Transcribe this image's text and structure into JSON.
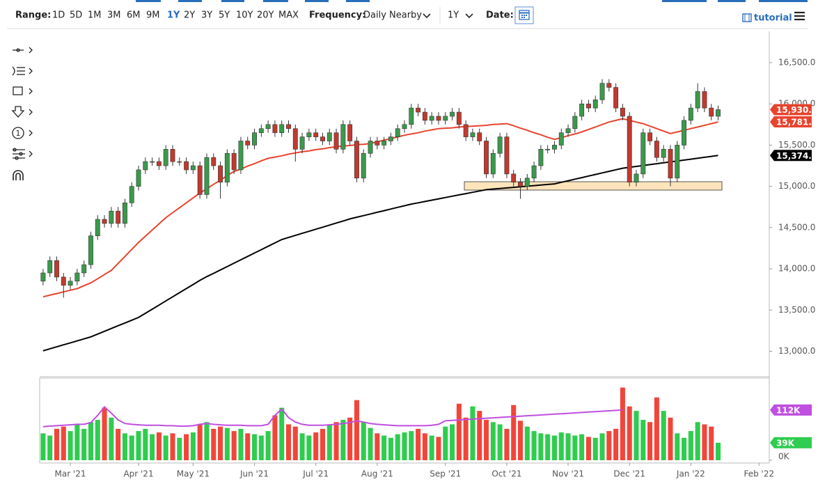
{
  "toolbar": {
    "range_label": "Range:",
    "ranges": [
      "1D",
      "5D",
      "1M",
      "3M",
      "6M",
      "9M",
      "1Y",
      "2Y",
      "3Y",
      "5Y",
      "10Y",
      "20Y",
      "MAX"
    ],
    "active_range_index": 6,
    "frequency_label": "Frequency:",
    "frequency": "Daily Nearby",
    "period": "1Y",
    "date_label": "Date:",
    "tutorial": "tutorial"
  },
  "tools": {
    "number_icon": "1"
  },
  "chart_data": {
    "type": "candlestick",
    "categories": [
      null,
      null,
      null,
      null,
      "Mar '21",
      null,
      null,
      null,
      null,
      null,
      null,
      null,
      null,
      null,
      "Apr '21",
      null,
      null,
      null,
      null,
      null,
      null,
      null,
      "May '21",
      null,
      null,
      null,
      null,
      null,
      null,
      null,
      null,
      "Jun '21",
      null,
      null,
      null,
      null,
      null,
      null,
      null,
      null,
      "Jul '21",
      null,
      null,
      null,
      null,
      null,
      null,
      null,
      null,
      "Aug '21",
      null,
      null,
      null,
      null,
      null,
      null,
      null,
      null,
      null,
      "Sep '21",
      null,
      null,
      null,
      null,
      null,
      null,
      null,
      null,
      "Oct '21",
      null,
      null,
      null,
      null,
      null,
      null,
      null,
      null,
      "Nov '21",
      null,
      null,
      null,
      null,
      null,
      null,
      null,
      null,
      "Dec '21",
      null,
      null,
      null,
      null,
      null,
      null,
      null,
      null,
      "Jan '22",
      null,
      null,
      null,
      null,
      null,
      null,
      null,
      null,
      null,
      "Feb '22",
      null
    ],
    "open": [
      13850,
      13950,
      14100,
      13900,
      13800,
      13850,
      13950,
      14050,
      14400,
      14600,
      14550,
      14700,
      14550,
      14800,
      15000,
      15200,
      15300,
      15300,
      15250,
      15450,
      15300,
      15300,
      15200,
      15250,
      14900,
      15350,
      15250,
      15050,
      15400,
      15200,
      15550,
      15500,
      15650,
      15700,
      15750,
      15650,
      15750,
      15700,
      15450,
      15600,
      15650,
      15600,
      15550,
      15650,
      15450,
      15750,
      15550,
      15100,
      15400,
      15550,
      15500,
      15550,
      15600,
      15700,
      15750,
      15950,
      15900,
      15800,
      15850,
      15800,
      15850,
      15900,
      15750,
      15600,
      15650,
      15550,
      15150,
      15400,
      15600,
      15150,
      15050,
      15000,
      15100,
      15250,
      15450,
      15450,
      15500,
      15650,
      15700,
      15850,
      16000,
      15950,
      16050,
      16250,
      16200,
      15950,
      15850,
      15050,
      15150,
      15650,
      15550,
      15350,
      15450,
      15100,
      15500,
      15800,
      15950,
      16150,
      15950,
      15850,
      null,
      null,
      null,
      null,
      null,
      null,
      null
    ],
    "high": [
      14000,
      14150,
      14150,
      13950,
      13900,
      14000,
      14100,
      14450,
      14650,
      14650,
      14750,
      14750,
      14850,
      15050,
      15250,
      15350,
      15350,
      15350,
      15500,
      15500,
      15350,
      15350,
      15300,
      15300,
      15400,
      15400,
      15300,
      15450,
      15450,
      15600,
      15600,
      15700,
      15750,
      15800,
      15800,
      15800,
      15800,
      15750,
      15650,
      15700,
      15700,
      15650,
      15700,
      15700,
      15800,
      15800,
      15600,
      15450,
      15600,
      15600,
      15600,
      15650,
      15750,
      15800,
      16000,
      16000,
      15950,
      15900,
      15900,
      15900,
      15950,
      15950,
      15800,
      15700,
      15700,
      15600,
      15450,
      15650,
      15650,
      15200,
      15100,
      15150,
      15300,
      15500,
      15500,
      15550,
      15700,
      15750,
      15900,
      16050,
      16050,
      16100,
      16300,
      16300,
      16250,
      16000,
      15900,
      15200,
      15700,
      15700,
      15600,
      15500,
      15500,
      15550,
      15850,
      16000,
      16250,
      16200,
      16000,
      15980,
      null,
      null,
      null,
      null,
      null,
      null,
      null
    ],
    "low": [
      13800,
      13900,
      13850,
      13650,
      13750,
      13800,
      13900,
      14000,
      14350,
      14500,
      14500,
      14500,
      14500,
      14750,
      14950,
      15150,
      15250,
      15200,
      15200,
      15250,
      15250,
      15150,
      15150,
      14850,
      14850,
      15200,
      14850,
      15000,
      15150,
      15150,
      15450,
      15450,
      15600,
      15650,
      15600,
      15600,
      15650,
      15300,
      15400,
      15550,
      15550,
      15500,
      15500,
      15400,
      15400,
      15500,
      15050,
      15050,
      15350,
      15450,
      15450,
      15500,
      15550,
      15650,
      15700,
      15850,
      15750,
      15750,
      15750,
      15750,
      15800,
      15700,
      15550,
      15550,
      15500,
      15100,
      15100,
      15350,
      15100,
      15000,
      14850,
      14950,
      15050,
      15200,
      15400,
      15400,
      15450,
      15600,
      15650,
      15800,
      15900,
      15900,
      16000,
      16150,
      15900,
      15800,
      15000,
      15000,
      15100,
      15500,
      15300,
      15300,
      15000,
      15050,
      15450,
      15750,
      15900,
      15900,
      15800,
      15800,
      null,
      null,
      null,
      null,
      null,
      null,
      null
    ],
    "close": [
      13950,
      14100,
      13900,
      13800,
      13850,
      13950,
      14050,
      14400,
      14600,
      14550,
      14700,
      14550,
      14800,
      15000,
      15200,
      15300,
      15300,
      15250,
      15450,
      15300,
      15300,
      15200,
      15250,
      14900,
      15350,
      15250,
      15050,
      15400,
      15200,
      15550,
      15500,
      15650,
      15700,
      15750,
      15650,
      15750,
      15700,
      15450,
      15600,
      15650,
      15600,
      15550,
      15650,
      15450,
      15750,
      15550,
      15100,
      15400,
      15550,
      15500,
      15550,
      15600,
      15700,
      15750,
      15950,
      15900,
      15800,
      15850,
      15800,
      15850,
      15900,
      15750,
      15600,
      15650,
      15550,
      15150,
      15400,
      15600,
      15150,
      15050,
      15000,
      15100,
      15250,
      15450,
      15450,
      15500,
      15650,
      15700,
      15850,
      16000,
      15950,
      16050,
      16250,
      16200,
      15950,
      15850,
      15050,
      15150,
      15650,
      15550,
      15350,
      15450,
      15100,
      15500,
      15800,
      15950,
      16150,
      15950,
      15850,
      15930,
      null,
      null,
      null,
      null,
      null,
      null,
      null
    ],
    "last_label": "15,930.0",
    "last_color": "#e8432e",
    "up_color": "#3a9a4b",
    "down_color": "#c2392e",
    "overlays": [
      {
        "color": "#e8432e",
        "last_label": "15,781.8",
        "values": [
          13660,
          13680,
          13700,
          13720,
          13740,
          13760,
          13795,
          13830,
          13880,
          13930,
          13980,
          14065,
          14150,
          14235,
          14320,
          14395,
          14470,
          14545,
          14620,
          14680,
          14740,
          14800,
          14860,
          14920,
          14970,
          15025,
          15075,
          15130,
          15180,
          15210,
          15245,
          15275,
          15310,
          15340,
          15355,
          15370,
          15390,
          15405,
          15420,
          15430,
          15445,
          15455,
          15470,
          15480,
          15490,
          15495,
          15505,
          15510,
          15520,
          15540,
          15560,
          15580,
          15600,
          15620,
          15635,
          15650,
          15670,
          15685,
          15700,
          15705,
          15710,
          15720,
          15725,
          15730,
          15735,
          15740,
          15750,
          15755,
          15760,
          15735,
          15705,
          15680,
          15650,
          15625,
          15595,
          15570,
          15590,
          15615,
          15635,
          15660,
          15690,
          15720,
          15750,
          15780,
          15800,
          15820,
          15800,
          15780,
          15760,
          15730,
          15700,
          15670,
          15640,
          15660,
          15680,
          15700,
          15720,
          15740,
          15760,
          15781.8,
          null,
          null,
          null,
          null,
          null,
          null,
          null
        ]
      },
      {
        "color": "#000000",
        "last_label": "15,374.5",
        "values": [
          13006,
          13030,
          13054,
          13078,
          13102,
          13126,
          13150,
          13175,
          13208,
          13242,
          13276,
          13310,
          13343,
          13376,
          13410,
          13460,
          13510,
          13560,
          13610,
          13660,
          13710,
          13760,
          13810,
          13860,
          13905,
          13945,
          13986,
          14027,
          14068,
          14109,
          14150,
          14191,
          14232,
          14273,
          14314,
          14355,
          14380,
          14405,
          14430,
          14455,
          14480,
          14505,
          14530,
          14555,
          14580,
          14605,
          14625,
          14645,
          14665,
          14685,
          14705,
          14725,
          14745,
          14765,
          14785,
          14800,
          14816,
          14832,
          14848,
          14864,
          14880,
          14896,
          14912,
          14928,
          14944,
          14960,
          14967,
          14974,
          14981,
          14988,
          14995,
          15002,
          15009,
          15016,
          15023,
          15030,
          15049,
          15068,
          15087,
          15106,
          15125,
          15144,
          15163,
          15182,
          15201,
          15220,
          15231,
          15242,
          15253,
          15264,
          15275,
          15286,
          15297,
          15308,
          15319,
          15330,
          15341,
          15352,
          15363,
          15374.5,
          null,
          null,
          null,
          null,
          null,
          null,
          null
        ]
      }
    ],
    "ylim": [
      12700,
      16880
    ],
    "yticks": [
      {
        "value": 13000,
        "label": "13,000.0"
      },
      {
        "value": 13500,
        "label": "13,500.0"
      },
      {
        "value": 14000,
        "label": "14,000.0"
      },
      {
        "value": 14500,
        "label": "14,500.0"
      },
      {
        "value": 15000,
        "label": "15,000.0"
      },
      {
        "value": 15500,
        "label": "15,500.0"
      },
      {
        "value": 16000,
        "label": "16,000.0"
      },
      {
        "value": 16500,
        "label": "16,500.0"
      }
    ],
    "grid": false,
    "volume": {
      "up_color": "#2fcc4f",
      "down_color": "#f2453a",
      "last_label": "39K",
      "values": [
        60000,
        55000,
        70000,
        75000,
        65000,
        80000,
        70000,
        85000,
        90000,
        117000,
        95000,
        70000,
        60000,
        55000,
        65000,
        70000,
        58000,
        62000,
        55000,
        60000,
        50000,
        58000,
        62000,
        80000,
        85000,
        70000,
        75000,
        72000,
        65000,
        70000,
        60000,
        58000,
        55000,
        65000,
        100000,
        117000,
        80000,
        75000,
        60000,
        55000,
        62000,
        70000,
        80000,
        85000,
        90000,
        95000,
        134000,
        85000,
        72000,
        60000,
        55000,
        50000,
        58000,
        62000,
        65000,
        70000,
        60000,
        55000,
        52000,
        75000,
        80000,
        126000,
        95000,
        120000,
        110000,
        90000,
        85000,
        80000,
        70000,
        123000,
        88000,
        75000,
        65000,
        60000,
        58000,
        55000,
        62000,
        60000,
        55000,
        58000,
        52000,
        50000,
        60000,
        65000,
        70000,
        162000,
        120000,
        110000,
        90000,
        85000,
        140000,
        110000,
        95000,
        60000,
        50000,
        65000,
        85000,
        80000,
        75000,
        39000,
        null,
        null,
        null,
        null,
        null,
        null,
        null
      ],
      "average": {
        "color": "#c04ee0",
        "last_label": "112K",
        "values": [
          75000,
          76000,
          77000,
          78000,
          79000,
          80000,
          80000,
          84000,
          100000,
          119000,
          105000,
          90000,
          82000,
          80000,
          79000,
          78000,
          78000,
          78000,
          77000,
          77000,
          76000,
          76000,
          77000,
          80000,
          82000,
          80000,
          79000,
          78000,
          78000,
          78000,
          77000,
          77000,
          77000,
          80000,
          100000,
          114000,
          95000,
          85000,
          80000,
          78000,
          78000,
          78000,
          79000,
          80000,
          82000,
          84000,
          88000,
          85000,
          82000,
          80000,
          79000,
          78000,
          77000,
          77000,
          77000,
          77000,
          77000,
          78000,
          80000,
          88000,
          88900,
          89800,
          90800,
          91700,
          92600,
          93500,
          94500,
          95400,
          96300,
          97200,
          98200,
          99100,
          100000,
          100900,
          101800,
          102800,
          103700,
          104600,
          105500,
          106500,
          107400,
          108300,
          109200,
          110200,
          111100,
          112000,
          null,
          null,
          null,
          null,
          null,
          null,
          null,
          null,
          null,
          null,
          null,
          null,
          null,
          null,
          null,
          null,
          null,
          null,
          null,
          null,
          null
        ]
      },
      "ylim": [
        0,
        180000
      ],
      "yticks": [
        {
          "value": 0,
          "label": "0K"
        }
      ]
    }
  }
}
